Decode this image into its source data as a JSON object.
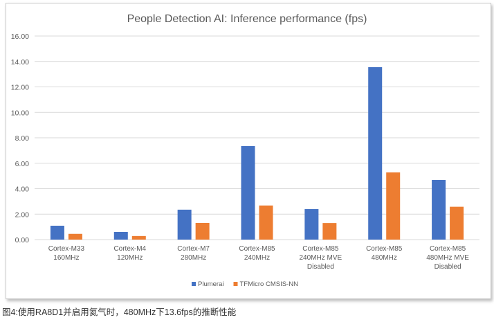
{
  "chart_data": {
    "type": "bar",
    "title": "People Detection AI: Inference performance (fps)",
    "categories": [
      [
        "Cortex-M33",
        "160MHz"
      ],
      [
        "Cortex-M4",
        "120MHz"
      ],
      [
        "Cortex-M7",
        "280MHz"
      ],
      [
        "Cortex-M85",
        "240MHz"
      ],
      [
        "Cortex-M85",
        "240MHz MVE",
        "Disabled"
      ],
      [
        "Cortex-M85",
        "480MHz"
      ],
      [
        "Cortex-M85",
        "480MHz MVE",
        "Disabled"
      ]
    ],
    "series": [
      {
        "name": "Plumerai",
        "color": "#4472C4",
        "values": [
          1.09,
          0.6,
          2.35,
          7.35,
          2.4,
          13.55,
          4.68
        ]
      },
      {
        "name": "TFMicro CMSIS-NN",
        "color": "#ED7D31",
        "values": [
          0.45,
          0.28,
          1.31,
          2.68,
          1.3,
          5.28,
          2.58
        ]
      }
    ],
    "ylim": [
      0,
      16
    ],
    "yticks": [
      "0.00",
      "2.00",
      "4.00",
      "6.00",
      "8.00",
      "10.00",
      "12.00",
      "14.00",
      "16.00"
    ],
    "grid": true,
    "legend": "bottom"
  },
  "caption": "图4:使用RA8D1并启用氦气时，480MHz下13.6fps的推断性能"
}
